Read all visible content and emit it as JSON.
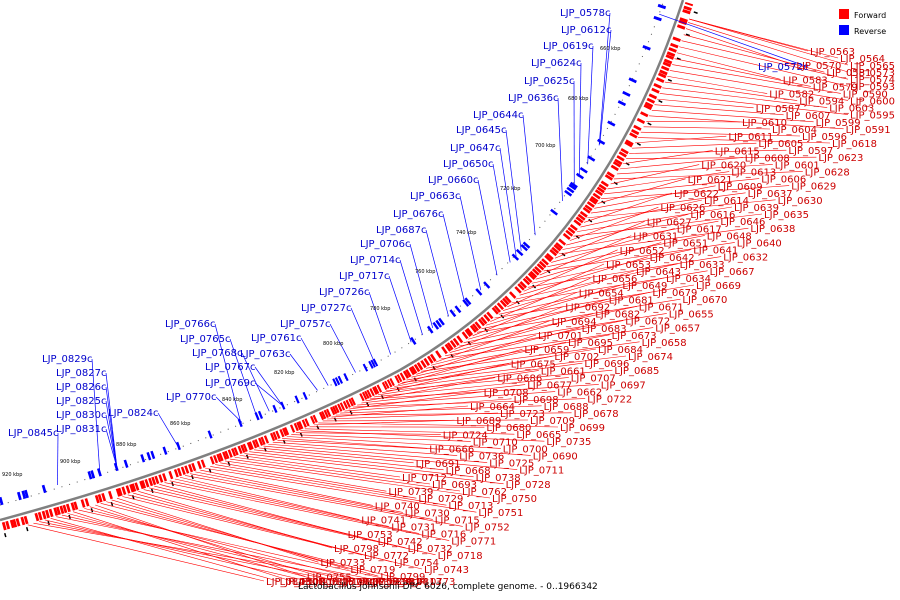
{
  "caption": "Lactobacillus johnsonii DPC 6026, complete genome. - 0..1966342",
  "legend": {
    "forward": {
      "label": "Forward",
      "color": "#ff0000"
    },
    "reverse": {
      "label": "Reverse",
      "color": "#0000ff"
    }
  },
  "ticks": [
    "920 kbp",
    "900 kbp",
    "880 kbp",
    "860 kbp",
    "840 kbp",
    "820 kbp",
    "800 kbp",
    "780 kbp",
    "760 kbp",
    "740 kbp",
    "720 kbp",
    "700 kbp",
    "680 kbp",
    "660 kbp"
  ],
  "reverse_labels": [
    "LJP_0578c",
    "LJP_0612c",
    "LJP_0619c",
    "LJP_0624c",
    "LJP_0625c",
    "LJP_0636c",
    "LJP_0644c",
    "LJP_0645c",
    "LJP_0647c",
    "LJP_0650c",
    "LJP_0660c",
    "LJP_0663c",
    "LJP_0676c",
    "LJP_0687c",
    "LJP_0706c",
    "LJP_0714c",
    "LJP_0717c",
    "LJP_0726c",
    "LJP_0727c",
    "LJP_0757c",
    "LJP_0761c",
    "LJP_0763c",
    "LJP_0766c",
    "LJP_0765c",
    "LJP_0768c",
    "LJP_0767c",
    "LJP_0769c",
    "LJP_0770c",
    "LJP_0829c",
    "LJP_0827c",
    "LJP_0826c",
    "LJP_0825c",
    "LJP_0824c",
    "LJP_0830c",
    "LJP_0831c",
    "LJP_0845c",
    "LJP_0572c"
  ],
  "forward_labels": [
    "LJP_0563",
    "LJP_0564",
    "LJP_0565",
    "LJP_0573",
    "LJP_0570",
    "LJP_0581",
    "LJP_0574",
    "LJP_0593",
    "LJP_0583",
    "LJP_0579",
    "LJP_0590",
    "LJP_0600",
    "LJP_0582",
    "LJP_0594",
    "LJP_0603",
    "LJP_0595",
    "LJP_0587",
    "LJP_0607",
    "LJP_0599",
    "LJP_0591",
    "LJP_0610",
    "LJP_0604",
    "LJP_0596",
    "LJP_0618",
    "LJP_0611",
    "LJP_0605",
    "LJP_0597",
    "LJP_0623",
    "LJP_0615",
    "LJP_0608",
    "LJP_0601",
    "LJP_0628",
    "LJP_0620",
    "LJP_0613",
    "LJP_0606",
    "LJP_0629",
    "LJP_0621",
    "LJP_0609",
    "LJP_0637",
    "LJP_0630",
    "LJP_0622",
    "LJP_0614",
    "LJP_0639",
    "LJP_0635",
    "LJP_0626",
    "LJP_0616",
    "LJP_0646",
    "LJP_0638",
    "LJP_0627",
    "LJP_0617",
    "LJP_0648",
    "LJP_0640",
    "LJP_0631",
    "LJP_0651",
    "LJP_0641",
    "LJP_0632",
    "LJP_0652",
    "LJP_0642",
    "LJP_0633",
    "LJP_0667",
    "LJP_0653",
    "LJP_0643",
    "LJP_0634",
    "LJP_0669",
    "LJP_0656",
    "LJP_0649",
    "LJP_0679",
    "LJP_0670",
    "LJP_0654",
    "LJP_0681",
    "LJP_0671",
    "LJP_0655",
    "LJP_0692",
    "LJP_0682",
    "LJP_0672",
    "LJP_0657",
    "LJP_0694",
    "LJP_0683",
    "LJP_0673",
    "LJP_0658",
    "LJP_0701",
    "LJP_0695",
    "LJP_0684",
    "LJP_0674",
    "LJP_0659",
    "LJP_0702",
    "LJP_0696",
    "LJP_0685",
    "LJP_0675",
    "LJP_0661",
    "LJP_0707",
    "LJP_0697",
    "LJP_0686",
    "LJP_0677",
    "LJP_0662",
    "LJP_0722",
    "LJP_0708",
    "LJP_0698",
    "LJP_0688",
    "LJP_0678",
    "LJP_0664",
    "LJP_0723",
    "LJP_0709",
    "LJP_0699",
    "LJP_0689",
    "LJP_0680",
    "LJP_0665",
    "LJP_0735",
    "LJP_0724",
    "LJP_0710",
    "LJP_0700",
    "LJP_0690",
    "LJP_0666",
    "LJP_0736",
    "LJP_0725",
    "LJP_0711",
    "LJP_0691",
    "LJP_0668",
    "LJP_0738",
    "LJP_0728",
    "LJP_0712",
    "LJP_0693",
    "LJP_0762",
    "LJP_0750",
    "LJP_0739",
    "LJP_0729",
    "LJP_0713",
    "LJP_0751",
    "LJP_0740",
    "LJP_0730",
    "LJP_0715",
    "LJP_0752",
    "LJP_0741",
    "LJP_0731",
    "LJP_0716",
    "LJP_0771",
    "LJP_0753",
    "LJP_0742",
    "LJP_0732",
    "LJP_0718",
    "LJP_0798",
    "LJP_0772",
    "LJP_0754",
    "LJP_0743",
    "LJP_0733",
    "LJP_0719",
    "LJP_0799",
    "LJP_0773",
    "LJP_0755",
    "LJP_0744",
    "LJP_0734",
    "LJP_0813",
    "LJP_0800",
    "LJP_0774",
    "LJP_0756",
    "LJP_0814",
    "LJP_0801",
    "LJP_0815",
    "LJP_0832",
    "LJP_0833",
    "LJP_0843"
  ]
}
